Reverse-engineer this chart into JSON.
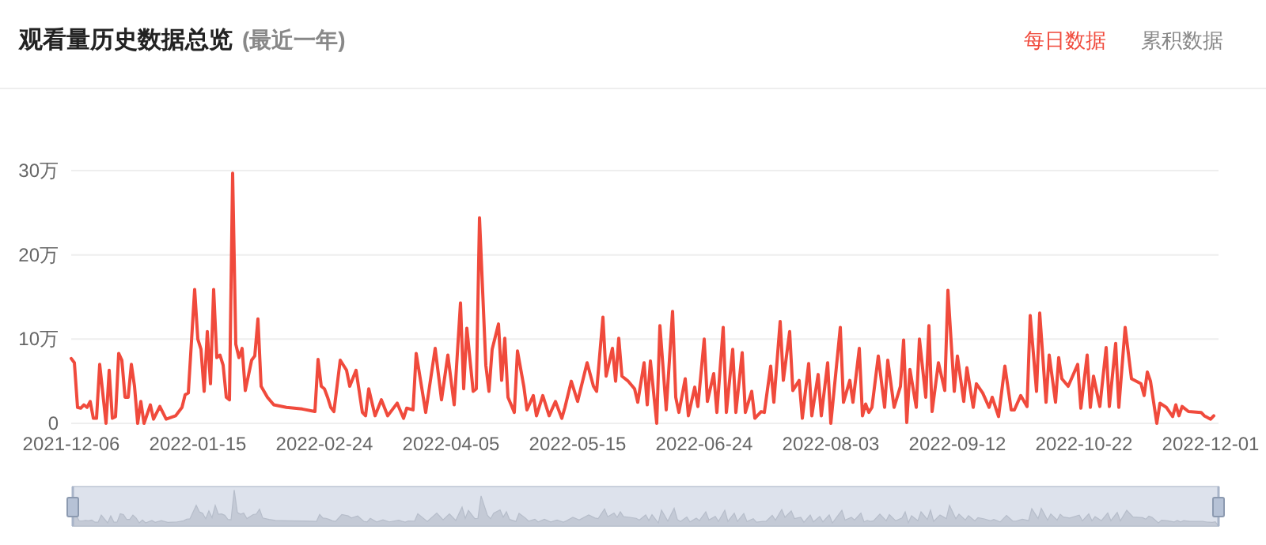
{
  "chart_data": {
    "type": "line",
    "title": "观看量历史数据总览",
    "subtitle": "(最近一年)",
    "annotations": [
      "每日数据",
      "累积数据"
    ],
    "xlim": [
      "2021-12-06",
      "2022-12-03"
    ],
    "xticks": [
      {
        "value": "2021-12-06",
        "label": "2021-12-06"
      },
      {
        "value": "2022-01-15",
        "label": "2022-01-15"
      },
      {
        "value": "2022-02-24",
        "label": "2022-02-24"
      },
      {
        "value": "2022-04-05",
        "label": "2022-04-05"
      },
      {
        "value": "2022-05-15",
        "label": "2022-05-15"
      },
      {
        "value": "2022-06-24",
        "label": "2022-06-24"
      },
      {
        "value": "2022-08-03",
        "label": "2022-08-03"
      },
      {
        "value": "2022-09-12",
        "label": "2022-09-12"
      },
      {
        "value": "2022-10-22",
        "label": "2022-10-22"
      },
      {
        "value": "2022-12-01",
        "label": "2022-12-01"
      }
    ],
    "ylim": [
      0,
      30
    ],
    "yticks": [
      0,
      {
        "value": 10,
        "label": "10万"
      },
      {
        "value": 20,
        "label": "20万"
      },
      {
        "value": 30,
        "label": "30万"
      }
    ],
    "grid": "y",
    "series": [
      {
        "color": "#f04a3c",
        "x": [
          "2021-12-06",
          "2021-12-07",
          "2021-12-08",
          "2021-12-09",
          "2021-12-10",
          "2021-12-11",
          "2021-12-12",
          "2021-12-13",
          "2021-12-14",
          "2021-12-15",
          "2021-12-17",
          "2021-12-18",
          "2021-12-19",
          "2021-12-20",
          "2021-12-21",
          "2021-12-22",
          "2021-12-23",
          "2021-12-24",
          "2021-12-25",
          "2021-12-26",
          "2021-12-27",
          "2021-12-28",
          "2021-12-29",
          "2021-12-31",
          "2022-01-01",
          "2022-01-03",
          "2022-01-05",
          "2022-01-08",
          "2022-01-10",
          "2022-01-11",
          "2022-01-12",
          "2022-01-14",
          "2022-01-15",
          "2022-01-16",
          "2022-01-17",
          "2022-01-18",
          "2022-01-19",
          "2022-01-20",
          "2022-01-21",
          "2022-01-22",
          "2022-01-23",
          "2022-01-24",
          "2022-01-25",
          "2022-01-26",
          "2022-01-27",
          "2022-01-28",
          "2022-01-29",
          "2022-01-30",
          "2022-02-01",
          "2022-02-02",
          "2022-02-03",
          "2022-02-04",
          "2022-02-06",
          "2022-02-08",
          "2022-02-12",
          "2022-02-17",
          "2022-02-21",
          "2022-02-22",
          "2022-02-23",
          "2022-02-24",
          "2022-02-25",
          "2022-02-26",
          "2022-02-27",
          "2022-03-01",
          "2022-03-03",
          "2022-03-04",
          "2022-03-06",
          "2022-03-08",
          "2022-03-09",
          "2022-03-10",
          "2022-03-12",
          "2022-03-14",
          "2022-03-16",
          "2022-03-19",
          "2022-03-21",
          "2022-03-22",
          "2022-03-24",
          "2022-03-25",
          "2022-03-28",
          "2022-03-31",
          "2022-04-02",
          "2022-04-04",
          "2022-04-06",
          "2022-04-08",
          "2022-04-09",
          "2022-04-10",
          "2022-04-12",
          "2022-04-13",
          "2022-04-14",
          "2022-04-16",
          "2022-04-17",
          "2022-04-18",
          "2022-04-20",
          "2022-04-21",
          "2022-04-22",
          "2022-04-23",
          "2022-04-25",
          "2022-04-26",
          "2022-04-28",
          "2022-04-29",
          "2022-05-01",
          "2022-05-02",
          "2022-05-04",
          "2022-05-06",
          "2022-05-08",
          "2022-05-10",
          "2022-05-11",
          "2022-05-13",
          "2022-05-15",
          "2022-05-18",
          "2022-05-20",
          "2022-05-21",
          "2022-05-23",
          "2022-05-24",
          "2022-05-26",
          "2022-05-27",
          "2022-05-28",
          "2022-05-29",
          "2022-05-31",
          "2022-06-02",
          "2022-06-03",
          "2022-06-05",
          "2022-06-06",
          "2022-06-07",
          "2022-06-09",
          "2022-06-10",
          "2022-06-12",
          "2022-06-14",
          "2022-06-15",
          "2022-06-16",
          "2022-06-18",
          "2022-06-19",
          "2022-06-21",
          "2022-06-22",
          "2022-06-24",
          "2022-06-25",
          "2022-06-27",
          "2022-06-28",
          "2022-06-30",
          "2022-07-01",
          "2022-07-03",
          "2022-07-04",
          "2022-07-06",
          "2022-07-07",
          "2022-07-09",
          "2022-07-10",
          "2022-07-12",
          "2022-07-13",
          "2022-07-15",
          "2022-07-16",
          "2022-07-18",
          "2022-07-19",
          "2022-07-21",
          "2022-07-22",
          "2022-07-24",
          "2022-07-25",
          "2022-07-27",
          "2022-07-28",
          "2022-07-30",
          "2022-07-31",
          "2022-08-02",
          "2022-08-03",
          "2022-08-06",
          "2022-08-07",
          "2022-08-09",
          "2022-08-10",
          "2022-08-12",
          "2022-08-13",
          "2022-08-14",
          "2022-08-15",
          "2022-08-16",
          "2022-08-18",
          "2022-08-20",
          "2022-08-21",
          "2022-08-23",
          "2022-08-25",
          "2022-08-26",
          "2022-08-27",
          "2022-08-28",
          "2022-08-30",
          "2022-08-31",
          "2022-09-02",
          "2022-09-03",
          "2022-09-04",
          "2022-09-06",
          "2022-09-08",
          "2022-09-09",
          "2022-09-11",
          "2022-09-12",
          "2022-09-14",
          "2022-09-15",
          "2022-09-17",
          "2022-09-18",
          "2022-09-20",
          "2022-09-22",
          "2022-09-23",
          "2022-09-25",
          "2022-09-27",
          "2022-09-29",
          "2022-09-30",
          "2022-10-02",
          "2022-10-04",
          "2022-10-05",
          "2022-10-07",
          "2022-10-08",
          "2022-10-10",
          "2022-10-11",
          "2022-10-13",
          "2022-10-14",
          "2022-10-15",
          "2022-10-17",
          "2022-10-20",
          "2022-10-21",
          "2022-10-23",
          "2022-10-24",
          "2022-10-25",
          "2022-10-27",
          "2022-10-29",
          "2022-10-30",
          "2022-11-01",
          "2022-11-02",
          "2022-11-04",
          "2022-11-06",
          "2022-11-09",
          "2022-11-10",
          "2022-11-11",
          "2022-11-12",
          "2022-11-14",
          "2022-11-15",
          "2022-11-17",
          "2022-11-19",
          "2022-11-20",
          "2022-11-21",
          "2022-11-22",
          "2022-11-24",
          "2022-11-28",
          "2022-11-29",
          "2022-12-01",
          "2022-12-02"
        ],
        "values": [
          7.7,
          7.2,
          1.9,
          1.8,
          2.2,
          1.9,
          2.6,
          0.6,
          0.6,
          7.0,
          0,
          6.3,
          0.6,
          0.8,
          8.3,
          7.5,
          3.1,
          3.1,
          7.0,
          4.4,
          0,
          2.6,
          0,
          2.2,
          0.5,
          2.0,
          0.5,
          0.9,
          1.9,
          3.4,
          3.6,
          15.9,
          10,
          8.8,
          3.8,
          10.9,
          4.7,
          15.9,
          7.8,
          8.1,
          6.9,
          3.1,
          2.8,
          29.7,
          9.4,
          7.8,
          8.9,
          3.9,
          7.5,
          8.0,
          12.4,
          4.4,
          3.1,
          2.2,
          1.9,
          1.7,
          1.4,
          7.6,
          4.4,
          4.1,
          3.1,
          1.9,
          1.4,
          7.5,
          6.3,
          4.4,
          6.3,
          1.3,
          0.9,
          4.1,
          0.9,
          2.8,
          0.9,
          2.4,
          0.6,
          1.8,
          1.6,
          8.3,
          1.3,
          8.9,
          2.8,
          8.1,
          2.2,
          14.3,
          4.1,
          11.3,
          3.8,
          4.1,
          24.4,
          6.9,
          3.8,
          8.8,
          11.8,
          5.1,
          10.1,
          3.1,
          1.3,
          8.6,
          4.4,
          1.6,
          3.3,
          0.9,
          3.3,
          0.9,
          2.6,
          0.6,
          1.9,
          5.0,
          2.6,
          7.2,
          4.4,
          3.8,
          12.6,
          5.6,
          8.9,
          5.0,
          10.1,
          5.6,
          5.0,
          4.1,
          2.5,
          7.2,
          2.2,
          7.4,
          0,
          11.6,
          1.6,
          13.3,
          3.1,
          1.3,
          5.3,
          0.9,
          4.3,
          2.0,
          10,
          2.6,
          5.9,
          1.3,
          11.4,
          1.3,
          8.8,
          1.3,
          8.4,
          1.3,
          3.8,
          0.6,
          1.4,
          1.3,
          6.8,
          2.5,
          12.1,
          5.1,
          10.9,
          3.9,
          5.1,
          0.6,
          7.1,
          0.9,
          5.8,
          0.9,
          7.2,
          0,
          11.4,
          2.5,
          5.1,
          2.5,
          8.9,
          0.9,
          2.3,
          1.3,
          1.9,
          8.0,
          1.9,
          7.5,
          1.9,
          4.4,
          9.9,
          0.1,
          6.4,
          1.9,
          10,
          3.1,
          11.6,
          1.4,
          7.2,
          3.9,
          15.8,
          3.8,
          8.0,
          2.6,
          6.6,
          1.9,
          4.7,
          3.6,
          1.9,
          3.1,
          0.8,
          6.8,
          1.6,
          1.6,
          3.3,
          2.0,
          12.8,
          3.8,
          13.1,
          2.5,
          8.1,
          2.5,
          7.8,
          5.3,
          4.4,
          7.0,
          1.8,
          8.1,
          1.9,
          5.6,
          2.0,
          9.0,
          2.0,
          9.5,
          1.9,
          11.4,
          5.3,
          4.7,
          3.3,
          6.1,
          5.0,
          0,
          2.4,
          1.9,
          0.8,
          2.2,
          0.9,
          2.0,
          1.4,
          1.3,
          0.9,
          0.5,
          0.9
        ]
      }
    ]
  }
}
